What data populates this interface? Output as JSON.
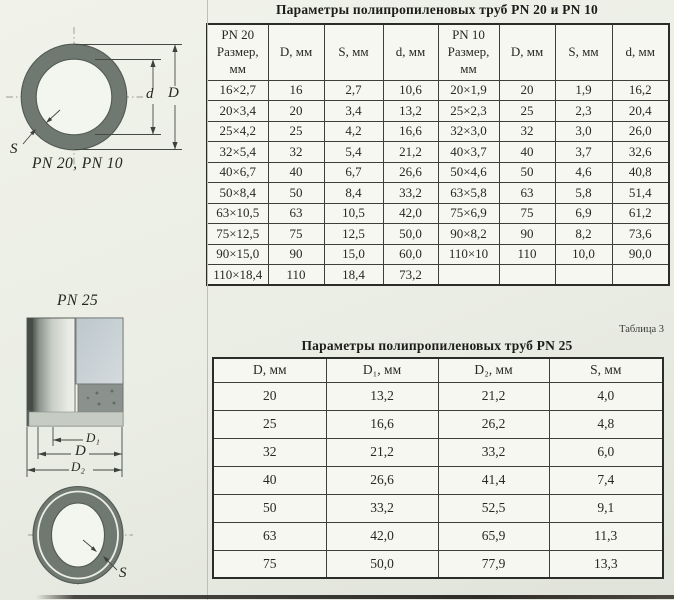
{
  "colors": {
    "paper": "#ebeee5",
    "cell_bg": "#f5f7f0",
    "table_border": "#3e3e3a",
    "pipe_wall_gray": "#6f7972",
    "text": "#23231f"
  },
  "table1": {
    "title": "Параметры полипропиленовых труб PN 20 и PN 10",
    "headers": [
      "PN 20\nРазмер,\nмм",
      "D, мм",
      "S, мм",
      "d, мм",
      "PN 10\nРазмер,\nмм",
      "D, мм",
      "S, мм",
      "d, мм"
    ],
    "rows": [
      [
        "16×2,7",
        "16",
        "2,7",
        "10,6",
        "20×1,9",
        "20",
        "1,9",
        "16,2"
      ],
      [
        "20×3,4",
        "20",
        "3,4",
        "13,2",
        "25×2,3",
        "25",
        "2,3",
        "20,4"
      ],
      [
        "25×4,2",
        "25",
        "4,2",
        "16,6",
        "32×3,0",
        "32",
        "3,0",
        "26,0"
      ],
      [
        "32×5,4",
        "32",
        "5,4",
        "21,2",
        "40×3,7",
        "40",
        "3,7",
        "32,6"
      ],
      [
        "40×6,7",
        "40",
        "6,7",
        "26,6",
        "50×4,6",
        "50",
        "4,6",
        "40,8"
      ],
      [
        "50×8,4",
        "50",
        "8,4",
        "33,2",
        "63×5,8",
        "63",
        "5,8",
        "51,4"
      ],
      [
        "63×10,5",
        "63",
        "10,5",
        "42,0",
        "75×6,9",
        "75",
        "6,9",
        "61,2"
      ],
      [
        "75×12,5",
        "75",
        "12,5",
        "50,0",
        "90×8,2",
        "90",
        "8,2",
        "73,6"
      ],
      [
        "90×15,0",
        "90",
        "15,0",
        "60,0",
        "110×10",
        "110",
        "10,0",
        "90,0"
      ],
      [
        "110×18,4",
        "110",
        "18,4",
        "73,2",
        "",
        "",
        "",
        ""
      ]
    ]
  },
  "table2": {
    "caption": "Таблица 3",
    "title": "Параметры полипропиленовых труб PN 25",
    "headers": [
      "D, мм",
      "D₁, мм",
      "D₂, мм",
      "S, мм"
    ],
    "rows": [
      [
        "20",
        "13,2",
        "21,2",
        "4,0"
      ],
      [
        "25",
        "16,6",
        "26,2",
        "4,8"
      ],
      [
        "32",
        "21,2",
        "33,2",
        "6,0"
      ],
      [
        "40",
        "26,6",
        "41,4",
        "7,4"
      ],
      [
        "50",
        "33,2",
        "52,5",
        "9,1"
      ],
      [
        "63",
        "42,0",
        "65,9",
        "11,3"
      ],
      [
        "75",
        "50,0",
        "77,9",
        "13,3"
      ]
    ]
  },
  "diagram_pn20": {
    "caption": "PN 20, PN 10",
    "label_inner_diameter": "d",
    "label_outer_diameter": "D",
    "label_wall": "S"
  },
  "diagram_pn25": {
    "caption": "PN 25",
    "label_d1": "D₁",
    "label_d": "D",
    "label_d2": "D₂",
    "label_wall": "S"
  }
}
